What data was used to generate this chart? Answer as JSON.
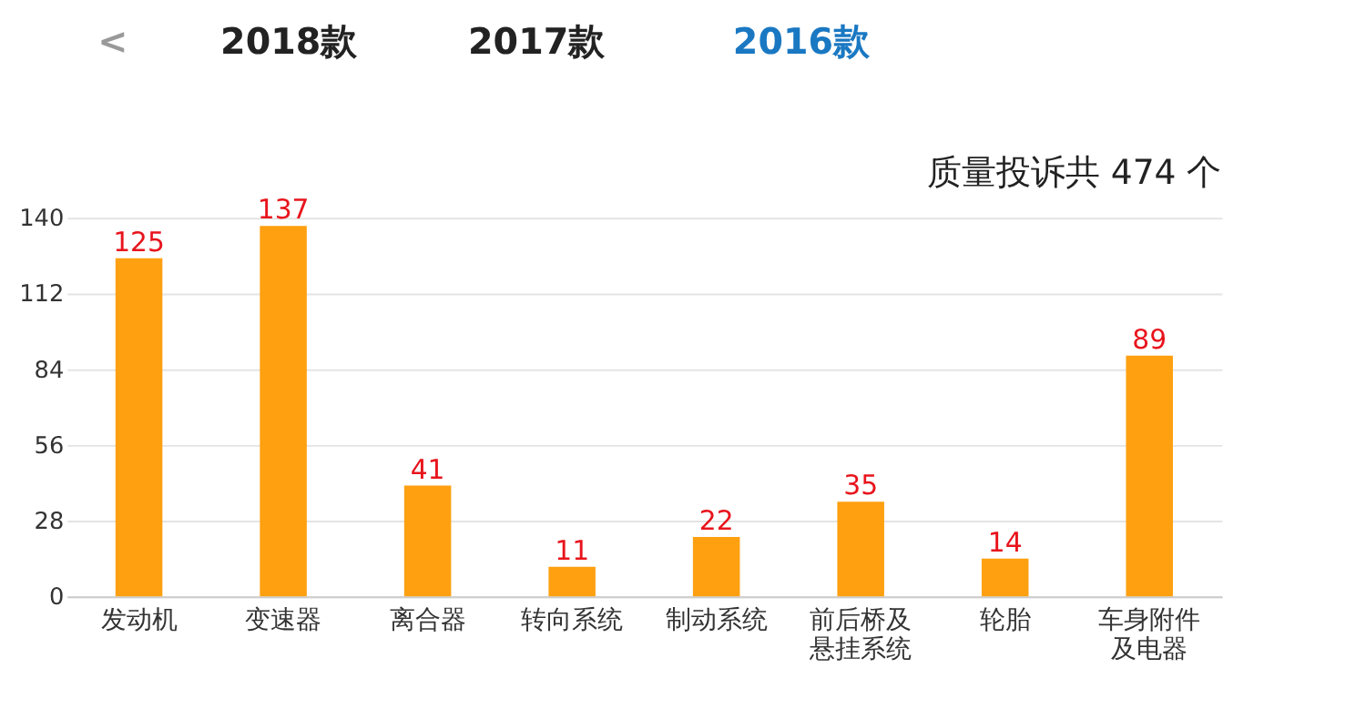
{
  "chart_data": {
    "type": "bar",
    "title": "质量投诉共 474 个",
    "annotations": [
      "<",
      "2018款",
      "2017款",
      "2016款"
    ],
    "categories": [
      "发动机",
      "变速器",
      "离合器",
      "转向系统",
      "制动系统",
      "前后桥及悬挂系统",
      "轮胎",
      "车身附件及电器"
    ],
    "values": [
      125,
      137,
      41,
      11,
      22,
      35,
      14,
      89
    ],
    "color": "#ffa011",
    "ylim": [
      0,
      140
    ],
    "yticks": [
      0,
      28,
      56,
      84,
      112,
      140
    ],
    "grid": "y",
    "data_labels": true
  }
}
